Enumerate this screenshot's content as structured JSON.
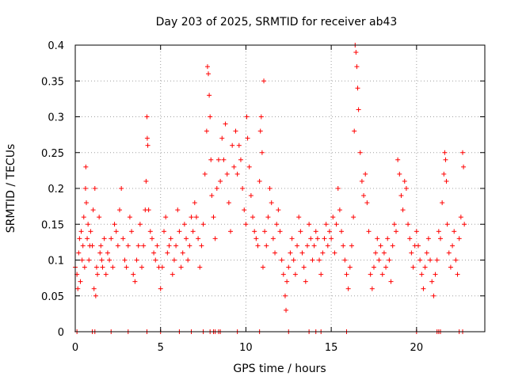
{
  "chart_data": {
    "type": "scatter",
    "title": "Day 203 of 2025, SRMTID for receiver ab43",
    "xlabel": "GPS time / hours",
    "ylabel": "SRMTID / TECUs",
    "xlim": [
      0,
      24
    ],
    "ylim": [
      0,
      0.4
    ],
    "xticks": [
      0,
      5,
      10,
      15,
      20
    ],
    "xtick_labels": [
      "0",
      "5",
      "10",
      "15",
      "20"
    ],
    "yticks": [
      0,
      0.05,
      0.1,
      0.15,
      0.2,
      0.25,
      0.3,
      0.35,
      0.4
    ],
    "ytick_labels": [
      "0",
      "0.05",
      "0.1",
      "0.15",
      "0.2",
      "0.25",
      "0.3",
      "0.35",
      "0.4"
    ],
    "grid": true,
    "marker": "+",
    "color": "#ff0000",
    "series": [
      {
        "name": "SRMTID",
        "points": [
          [
            0.0,
            0.09
          ],
          [
            0.1,
            0.08
          ],
          [
            0.15,
            0.06
          ],
          [
            0.2,
            0.11
          ],
          [
            0.25,
            0.13
          ],
          [
            0.3,
            0.07
          ],
          [
            0.35,
            0.14
          ],
          [
            0.4,
            0.1
          ],
          [
            0.45,
            0.12
          ],
          [
            0.5,
            0.16
          ],
          [
            0.55,
            0.09
          ],
          [
            0.6,
            0.2
          ],
          [
            0.62,
            0.23
          ],
          [
            0.65,
            0.18
          ],
          [
            0.7,
            0.13
          ],
          [
            0.75,
            0.15
          ],
          [
            0.8,
            0.1
          ],
          [
            0.85,
            0.12
          ],
          [
            0.9,
            0.14
          ],
          [
            1.0,
            0.12
          ],
          [
            1.05,
            0.17
          ],
          [
            1.1,
            0.06
          ],
          [
            1.15,
            0.2
          ],
          [
            1.2,
            0.05
          ],
          [
            1.25,
            0.09
          ],
          [
            1.3,
            0.08
          ],
          [
            1.4,
            0.16
          ],
          [
            1.45,
            0.11
          ],
          [
            1.5,
            0.12
          ],
          [
            1.55,
            0.1
          ],
          [
            1.6,
            0.09
          ],
          [
            1.7,
            0.13
          ],
          [
            1.8,
            0.08
          ],
          [
            1.9,
            0.11
          ],
          [
            2.0,
            0.1
          ],
          [
            2.1,
            0.13
          ],
          [
            2.2,
            0.09
          ],
          [
            2.3,
            0.15
          ],
          [
            2.4,
            0.14
          ],
          [
            2.5,
            0.12
          ],
          [
            2.6,
            0.17
          ],
          [
            2.7,
            0.2
          ],
          [
            2.8,
            0.13
          ],
          [
            2.9,
            0.1
          ],
          [
            3.0,
            0.09
          ],
          [
            3.1,
            0.12
          ],
          [
            3.2,
            0.16
          ],
          [
            3.3,
            0.14
          ],
          [
            3.4,
            0.08
          ],
          [
            3.5,
            0.07
          ],
          [
            3.6,
            0.1
          ],
          [
            3.7,
            0.12
          ],
          [
            3.8,
            0.15
          ],
          [
            3.9,
            0.09
          ],
          [
            4.0,
            0.12
          ],
          [
            4.1,
            0.17
          ],
          [
            4.15,
            0.21
          ],
          [
            4.2,
            0.3
          ],
          [
            4.22,
            0.27
          ],
          [
            4.25,
            0.26
          ],
          [
            4.3,
            0.17
          ],
          [
            4.4,
            0.14
          ],
          [
            4.5,
            0.13
          ],
          [
            4.6,
            0.11
          ],
          [
            4.7,
            0.1
          ],
          [
            4.8,
            0.12
          ],
          [
            4.9,
            0.09
          ],
          [
            5.0,
            0.06
          ],
          [
            5.1,
            0.09
          ],
          [
            5.2,
            0.14
          ],
          [
            5.3,
            0.16
          ],
          [
            5.4,
            0.11
          ],
          [
            5.5,
            0.12
          ],
          [
            5.6,
            0.13
          ],
          [
            5.7,
            0.08
          ],
          [
            5.8,
            0.1
          ],
          [
            5.9,
            0.12
          ],
          [
            6.0,
            0.17
          ],
          [
            6.1,
            0.14
          ],
          [
            6.2,
            0.09
          ],
          [
            6.3,
            0.11
          ],
          [
            6.4,
            0.15
          ],
          [
            6.5,
            0.13
          ],
          [
            6.6,
            0.1
          ],
          [
            6.7,
            0.12
          ],
          [
            6.8,
            0.16
          ],
          [
            6.9,
            0.14
          ],
          [
            7.0,
            0.18
          ],
          [
            7.1,
            0.16
          ],
          [
            7.2,
            0.13
          ],
          [
            7.3,
            0.09
          ],
          [
            7.4,
            0.12
          ],
          [
            7.5,
            0.15
          ],
          [
            7.6,
            0.22
          ],
          [
            7.7,
            0.28
          ],
          [
            7.75,
            0.37
          ],
          [
            7.8,
            0.36
          ],
          [
            7.85,
            0.33
          ],
          [
            7.9,
            0.3
          ],
          [
            7.95,
            0.24
          ],
          [
            8.0,
            0.19
          ],
          [
            8.1,
            0.16
          ],
          [
            8.2,
            0.13
          ],
          [
            8.3,
            0.2
          ],
          [
            8.4,
            0.24
          ],
          [
            8.5,
            0.21
          ],
          [
            8.6,
            0.27
          ],
          [
            8.7,
            0.24
          ],
          [
            8.8,
            0.29
          ],
          [
            8.9,
            0.22
          ],
          [
            9.0,
            0.18
          ],
          [
            9.1,
            0.14
          ],
          [
            9.2,
            0.26
          ],
          [
            9.3,
            0.23
          ],
          [
            9.4,
            0.28
          ],
          [
            9.5,
            0.22
          ],
          [
            9.6,
            0.26
          ],
          [
            9.7,
            0.24
          ],
          [
            9.8,
            0.2
          ],
          [
            9.9,
            0.17
          ],
          [
            10.0,
            0.15
          ],
          [
            10.05,
            0.3
          ],
          [
            10.1,
            0.27
          ],
          [
            10.2,
            0.23
          ],
          [
            10.3,
            0.19
          ],
          [
            10.4,
            0.16
          ],
          [
            10.5,
            0.14
          ],
          [
            10.6,
            0.13
          ],
          [
            10.7,
            0.12
          ],
          [
            10.8,
            0.21
          ],
          [
            10.85,
            0.28
          ],
          [
            10.9,
            0.3
          ],
          [
            10.95,
            0.25
          ],
          [
            11.0,
            0.09
          ],
          [
            11.05,
            0.35
          ],
          [
            11.1,
            0.14
          ],
          [
            11.2,
            0.12
          ],
          [
            11.3,
            0.16
          ],
          [
            11.4,
            0.2
          ],
          [
            11.5,
            0.18
          ],
          [
            11.6,
            0.13
          ],
          [
            11.7,
            0.11
          ],
          [
            11.8,
            0.15
          ],
          [
            11.9,
            0.17
          ],
          [
            12.0,
            0.14
          ],
          [
            12.1,
            0.1
          ],
          [
            12.2,
            0.08
          ],
          [
            12.3,
            0.05
          ],
          [
            12.35,
            0.03
          ],
          [
            12.4,
            0.07
          ],
          [
            12.5,
            0.09
          ],
          [
            12.6,
            0.11
          ],
          [
            12.7,
            0.13
          ],
          [
            12.8,
            0.1
          ],
          [
            12.9,
            0.08
          ],
          [
            13.0,
            0.12
          ],
          [
            13.1,
            0.16
          ],
          [
            13.2,
            0.14
          ],
          [
            13.3,
            0.11
          ],
          [
            13.4,
            0.09
          ],
          [
            13.5,
            0.07
          ],
          [
            13.6,
            0.12
          ],
          [
            13.7,
            0.15
          ],
          [
            13.8,
            0.13
          ],
          [
            13.9,
            0.1
          ],
          [
            14.0,
            0.12
          ],
          [
            14.1,
            0.14
          ],
          [
            14.2,
            0.13
          ],
          [
            14.3,
            0.1
          ],
          [
            14.4,
            0.08
          ],
          [
            14.5,
            0.11
          ],
          [
            14.6,
            0.13
          ],
          [
            14.7,
            0.15
          ],
          [
            14.8,
            0.12
          ],
          [
            14.9,
            0.14
          ],
          [
            15.0,
            0.13
          ],
          [
            15.1,
            0.16
          ],
          [
            15.2,
            0.11
          ],
          [
            15.3,
            0.15
          ],
          [
            15.4,
            0.2
          ],
          [
            15.5,
            0.17
          ],
          [
            15.6,
            0.14
          ],
          [
            15.7,
            0.12
          ],
          [
            15.8,
            0.1
          ],
          [
            15.9,
            0.08
          ],
          [
            16.0,
            0.06
          ],
          [
            16.1,
            0.09
          ],
          [
            16.2,
            0.12
          ],
          [
            16.3,
            0.16
          ],
          [
            16.35,
            0.28
          ],
          [
            16.4,
            0.4
          ],
          [
            16.45,
            0.39
          ],
          [
            16.5,
            0.37
          ],
          [
            16.55,
            0.34
          ],
          [
            16.6,
            0.31
          ],
          [
            16.7,
            0.25
          ],
          [
            16.8,
            0.21
          ],
          [
            16.9,
            0.19
          ],
          [
            17.0,
            0.22
          ],
          [
            17.1,
            0.18
          ],
          [
            17.2,
            0.14
          ],
          [
            17.3,
            0.08
          ],
          [
            17.4,
            0.06
          ],
          [
            17.5,
            0.09
          ],
          [
            17.6,
            0.11
          ],
          [
            17.7,
            0.13
          ],
          [
            17.8,
            0.1
          ],
          [
            17.9,
            0.12
          ],
          [
            18.0,
            0.08
          ],
          [
            18.1,
            0.11
          ],
          [
            18.2,
            0.09
          ],
          [
            18.3,
            0.13
          ],
          [
            18.4,
            0.1
          ],
          [
            18.5,
            0.07
          ],
          [
            18.6,
            0.12
          ],
          [
            18.7,
            0.15
          ],
          [
            18.8,
            0.14
          ],
          [
            18.9,
            0.24
          ],
          [
            19.0,
            0.22
          ],
          [
            19.1,
            0.19
          ],
          [
            19.2,
            0.17
          ],
          [
            19.3,
            0.21
          ],
          [
            19.4,
            0.2
          ],
          [
            19.5,
            0.15
          ],
          [
            19.6,
            0.13
          ],
          [
            19.7,
            0.11
          ],
          [
            19.8,
            0.09
          ],
          [
            19.9,
            0.12
          ],
          [
            20.0,
            0.14
          ],
          [
            20.1,
            0.12
          ],
          [
            20.2,
            0.1
          ],
          [
            20.3,
            0.08
          ],
          [
            20.4,
            0.06
          ],
          [
            20.5,
            0.09
          ],
          [
            20.6,
            0.11
          ],
          [
            20.7,
            0.13
          ],
          [
            20.8,
            0.1
          ],
          [
            20.9,
            0.07
          ],
          [
            21.0,
            0.05
          ],
          [
            21.1,
            0.08
          ],
          [
            21.2,
            0.1
          ],
          [
            21.3,
            0.14
          ],
          [
            21.4,
            0.13
          ],
          [
            21.5,
            0.18
          ],
          [
            21.6,
            0.22
          ],
          [
            21.65,
            0.25
          ],
          [
            21.7,
            0.24
          ],
          [
            21.75,
            0.21
          ],
          [
            21.8,
            0.15
          ],
          [
            21.9,
            0.11
          ],
          [
            22.0,
            0.09
          ],
          [
            22.1,
            0.12
          ],
          [
            22.2,
            0.14
          ],
          [
            22.3,
            0.1
          ],
          [
            22.4,
            0.08
          ],
          [
            22.5,
            0.13
          ],
          [
            22.6,
            0.16
          ],
          [
            22.7,
            0.25
          ],
          [
            22.75,
            0.23
          ],
          [
            22.8,
            0.15
          ]
        ]
      }
    ],
    "zero_points_x": [
      0.1,
      1.0,
      1.15,
      2.1,
      3.1,
      4.2,
      5.0,
      6.1,
      6.8,
      7.5,
      7.9,
      8.1,
      8.2,
      8.4,
      8.5,
      9.5,
      10.8,
      12.5,
      13.7,
      14.1,
      14.4,
      15.9,
      20.0,
      21.2,
      21.3,
      21.4,
      22.5,
      22.7
    ]
  }
}
